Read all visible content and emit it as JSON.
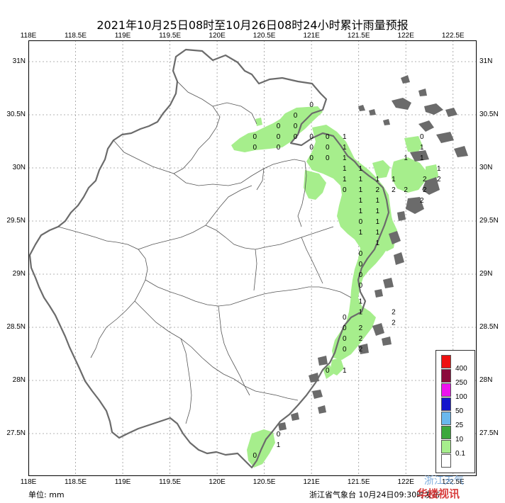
{
  "title": "2021年10月25日08时至10月26日08时24小时累计雨量预报",
  "map": {
    "x_ticks": [
      "118E",
      "118.5E",
      "119E",
      "119.5E",
      "120E",
      "120.5E",
      "121E",
      "121.5E",
      "122E",
      "122.5E"
    ],
    "y_ticks": [
      "31N",
      "30.5N",
      "30N",
      "29.5N",
      "29N",
      "28.5N",
      "28N",
      "27.5N"
    ],
    "colors": {
      "rain_light": "#a6ee8c",
      "land_border": "#6b6b6b",
      "county_border": "#555555"
    }
  },
  "forecast_values": [
    {
      "lon": 121.0,
      "lat": 30.6,
      "v": "0"
    },
    {
      "lon": 120.83,
      "lat": 30.5,
      "v": "0"
    },
    {
      "lon": 120.65,
      "lat": 30.4,
      "v": "0"
    },
    {
      "lon": 120.83,
      "lat": 30.4,
      "v": "0"
    },
    {
      "lon": 120.4,
      "lat": 30.3,
      "v": "0"
    },
    {
      "lon": 120.65,
      "lat": 30.3,
      "v": "0"
    },
    {
      "lon": 120.83,
      "lat": 30.3,
      "v": "0"
    },
    {
      "lon": 121.0,
      "lat": 30.3,
      "v": "0"
    },
    {
      "lon": 121.17,
      "lat": 30.3,
      "v": "0"
    },
    {
      "lon": 121.35,
      "lat": 30.3,
      "v": "1"
    },
    {
      "lon": 120.4,
      "lat": 30.2,
      "v": "0"
    },
    {
      "lon": 120.65,
      "lat": 30.2,
      "v": "0"
    },
    {
      "lon": 121.0,
      "lat": 30.2,
      "v": "0"
    },
    {
      "lon": 121.17,
      "lat": 30.2,
      "v": "0"
    },
    {
      "lon": 121.35,
      "lat": 30.2,
      "v": "1"
    },
    {
      "lon": 121.0,
      "lat": 30.1,
      "v": "0"
    },
    {
      "lon": 121.17,
      "lat": 30.1,
      "v": "0"
    },
    {
      "lon": 121.35,
      "lat": 30.1,
      "v": "1"
    },
    {
      "lon": 121.35,
      "lat": 30.0,
      "v": "1"
    },
    {
      "lon": 121.52,
      "lat": 30.0,
      "v": "1"
    },
    {
      "lon": 121.35,
      "lat": 29.9,
      "v": "1"
    },
    {
      "lon": 121.52,
      "lat": 29.9,
      "v": "1"
    },
    {
      "lon": 121.7,
      "lat": 29.9,
      "v": "1"
    },
    {
      "lon": 121.87,
      "lat": 29.9,
      "v": "1"
    },
    {
      "lon": 121.35,
      "lat": 29.8,
      "v": "0"
    },
    {
      "lon": 121.52,
      "lat": 29.8,
      "v": "1"
    },
    {
      "lon": 121.7,
      "lat": 29.8,
      "v": "2"
    },
    {
      "lon": 121.87,
      "lat": 29.8,
      "v": "2"
    },
    {
      "lon": 121.52,
      "lat": 29.7,
      "v": "1"
    },
    {
      "lon": 121.7,
      "lat": 29.7,
      "v": "1"
    },
    {
      "lon": 121.52,
      "lat": 29.6,
      "v": "1"
    },
    {
      "lon": 121.7,
      "lat": 29.6,
      "v": "1"
    },
    {
      "lon": 121.52,
      "lat": 29.5,
      "v": "0"
    },
    {
      "lon": 121.7,
      "lat": 29.5,
      "v": "1"
    },
    {
      "lon": 121.52,
      "lat": 29.4,
      "v": "1"
    },
    {
      "lon": 121.7,
      "lat": 29.4,
      "v": "1"
    },
    {
      "lon": 121.52,
      "lat": 29.2,
      "v": "0"
    },
    {
      "lon": 121.7,
      "lat": 29.3,
      "v": "1"
    },
    {
      "lon": 121.52,
      "lat": 29.1,
      "v": "0"
    },
    {
      "lon": 121.52,
      "lat": 29.0,
      "v": "0"
    },
    {
      "lon": 121.52,
      "lat": 28.9,
      "v": "0"
    },
    {
      "lon": 121.52,
      "lat": 28.75,
      "v": "1"
    },
    {
      "lon": 121.52,
      "lat": 28.65,
      "v": "1"
    },
    {
      "lon": 121.87,
      "lat": 28.65,
      "v": "2"
    },
    {
      "lon": 121.87,
      "lat": 28.55,
      "v": "2"
    },
    {
      "lon": 121.35,
      "lat": 28.6,
      "v": "0"
    },
    {
      "lon": 121.35,
      "lat": 28.5,
      "v": "0"
    },
    {
      "lon": 121.35,
      "lat": 28.4,
      "v": "0"
    },
    {
      "lon": 121.35,
      "lat": 28.3,
      "v": "0"
    },
    {
      "lon": 121.52,
      "lat": 28.5,
      "v": "2"
    },
    {
      "lon": 121.52,
      "lat": 28.4,
      "v": "2"
    },
    {
      "lon": 121.52,
      "lat": 28.3,
      "v": "2"
    },
    {
      "lon": 121.17,
      "lat": 28.1,
      "v": "0"
    },
    {
      "lon": 121.35,
      "lat": 28.1,
      "v": "1"
    },
    {
      "lon": 122.17,
      "lat": 30.3,
      "v": "0"
    },
    {
      "lon": 122.17,
      "lat": 30.2,
      "v": "1"
    },
    {
      "lon": 122.0,
      "lat": 30.1,
      "v": "1"
    },
    {
      "lon": 122.17,
      "lat": 30.1,
      "v": "1"
    },
    {
      "lon": 122.35,
      "lat": 30.0,
      "v": "1"
    },
    {
      "lon": 122.2,
      "lat": 29.9,
      "v": "2"
    },
    {
      "lon": 122.35,
      "lat": 29.9,
      "v": "2"
    },
    {
      "lon": 122.0,
      "lat": 29.8,
      "v": "2"
    },
    {
      "lon": 122.2,
      "lat": 29.8,
      "v": "2"
    },
    {
      "lon": 122.17,
      "lat": 29.7,
      "v": "2"
    },
    {
      "lon": 120.65,
      "lat": 27.5,
      "v": "0"
    },
    {
      "lon": 120.65,
      "lat": 27.4,
      "v": "1"
    },
    {
      "lon": 120.4,
      "lat": 27.3,
      "v": "0"
    }
  ],
  "legend": {
    "items": [
      {
        "label": "400",
        "color": "#ee1111"
      },
      {
        "label": "250",
        "color": "#8b0a3c"
      },
      {
        "label": "100",
        "color": "#ee11ee"
      },
      {
        "label": "50",
        "color": "#1515cc"
      },
      {
        "label": "25",
        "color": "#6ab8ee"
      },
      {
        "label": "10",
        "color": "#3ca83c"
      },
      {
        "label": "0.1",
        "color": "#a6ee8c"
      },
      {
        "label": "",
        "color": "#ffffff"
      }
    ]
  },
  "footer": {
    "unit": "单位: mm",
    "issuer": "浙江省气象台 10月24日09:30时发布"
  },
  "watermark": {
    "line1": "浙江天气",
    "line2": "华楼视讯"
  }
}
